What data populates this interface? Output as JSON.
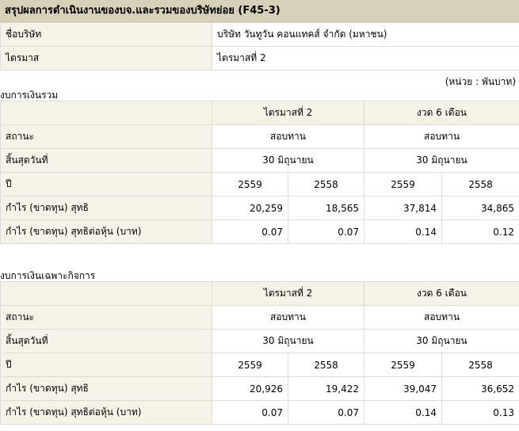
{
  "title": "สรุปผลการดำเนินงานของบจ.และรวมของบริษัทย่อย (F45-3)",
  "info": {
    "company_label": "ชื่อบริษัท",
    "company_value": "บริษัท วันทูวัน คอนแทคส์ จำกัด (มหาชน)",
    "quarter_label": "ไตรมาส",
    "quarter_value": "ไตรมาสที่ 2"
  },
  "unit_note": "(หน่วย : พันบาท)",
  "sections": [
    {
      "heading": "งบการเงินรวม",
      "period_q": "ไตรมาสที่ 2",
      "period_6m": "งวด 6 เดือน",
      "status_label": "สถานะ",
      "status_q": "สอบทาน",
      "status_6m": "สอบทาน",
      "enddate_label": "สิ้นสุดวันที่",
      "enddate_q": "30 มิถุนายน",
      "enddate_6m": "30 มิถุนายน",
      "year_label": "ปี",
      "years": [
        "2559",
        "2558",
        "2559",
        "2558"
      ],
      "profit_label": "กำไร (ขาดทุน) สุทธิ",
      "profit": [
        "20,259",
        "18,565",
        "37,814",
        "34,865"
      ],
      "eps_label": "กำไร (ขาดทุน) สุทธิต่อหุ้น (บาท)",
      "eps": [
        "0.07",
        "0.07",
        "0.14",
        "0.12"
      ]
    },
    {
      "heading": "งบการเงินเฉพาะกิจการ",
      "period_q": "ไตรมาสที่ 2",
      "period_6m": "งวด 6 เดือน",
      "status_label": "สถานะ",
      "status_q": "สอบทาน",
      "status_6m": "สอบทาน",
      "enddate_label": "สิ้นสุดวันที่",
      "enddate_q": "30 มิถุนายน",
      "enddate_6m": "30 มิถุนายน",
      "year_label": "ปี",
      "years": [
        "2559",
        "2558",
        "2559",
        "2558"
      ],
      "profit_label": "กำไร (ขาดทุน) สุทธิ",
      "profit": [
        "20,926",
        "19,422",
        "39,047",
        "36,652"
      ],
      "eps_label": "กำไร (ขาดทุน) สุทธิต่อหุ้น (บาท)",
      "eps": [
        "0.07",
        "0.07",
        "0.14",
        "0.13"
      ]
    }
  ]
}
